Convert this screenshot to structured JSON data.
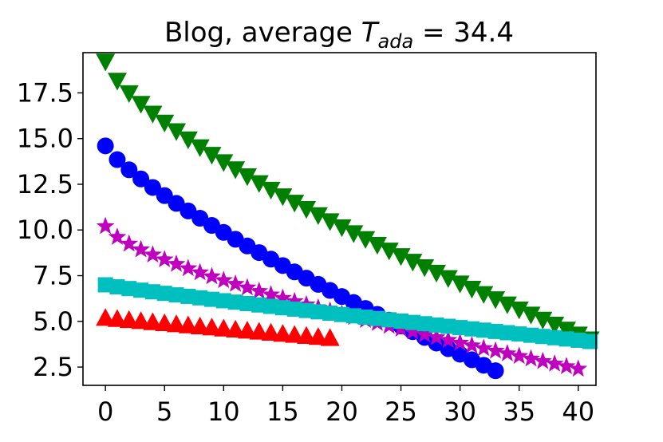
{
  "chart_data": {
    "type": "scatter",
    "title": {
      "prefix": "Blog, average ",
      "symbol": "T",
      "subscript": "ada",
      "suffix": " = 34.4"
    },
    "xlabel": "",
    "ylabel": "",
    "xlim": [
      -1.9,
      41.5
    ],
    "ylim": [
      1.5,
      19.7
    ],
    "xticks": [
      "0",
      "5",
      "10",
      "15",
      "20",
      "25",
      "30",
      "35",
      "40"
    ],
    "yticks": [
      "2.5",
      "5.0",
      "7.5",
      "10.0",
      "12.5",
      "15.0",
      "17.5"
    ],
    "grid": false,
    "legend": "none",
    "series": [
      {
        "marker": "triangle-down",
        "color": "#008000",
        "x": [
          0,
          41
        ],
        "y_start": 19.2,
        "y_end": 4.0,
        "curve": 0.72
      },
      {
        "marker": "circle",
        "color": "#0000ff",
        "x": [
          0,
          33
        ],
        "y_start": 14.6,
        "y_end": 2.3,
        "curve": 0.8
      },
      {
        "marker": "star",
        "color": "#bf00bf",
        "x": [
          0,
          40
        ],
        "y_start": 10.2,
        "y_end": 2.4,
        "curve": 0.7
      },
      {
        "marker": "square",
        "color": "#00bfbf",
        "x": [
          0,
          41
        ],
        "y_start": 7.0,
        "y_end": 3.9,
        "curve": 0.9
      },
      {
        "marker": "triangle-up",
        "color": "#ff0000",
        "x": [
          0,
          19
        ],
        "y_start": 5.2,
        "y_end": 4.1,
        "curve": 1.0
      }
    ]
  }
}
